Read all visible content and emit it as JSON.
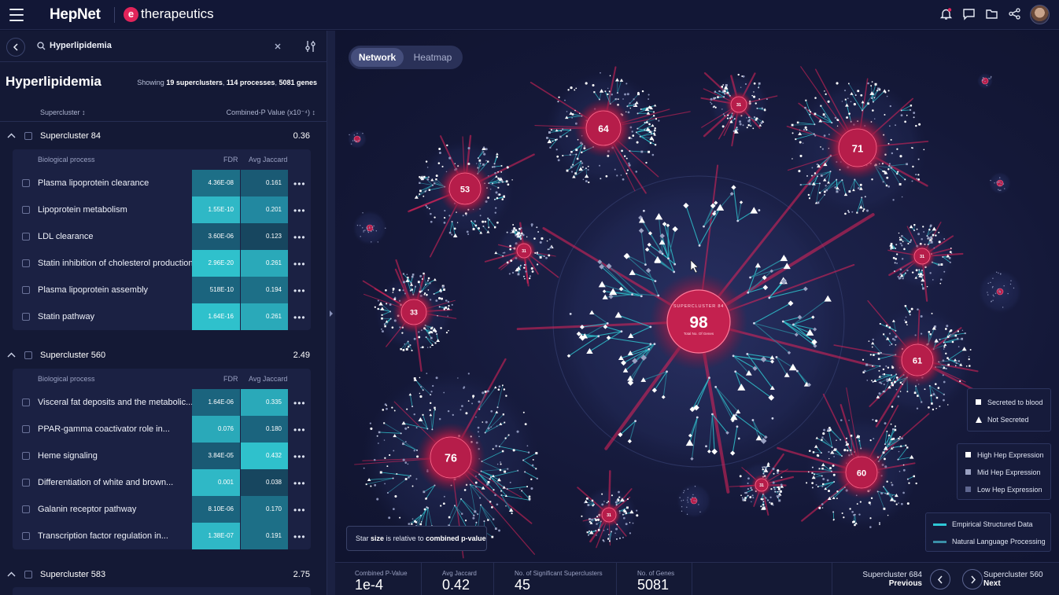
{
  "app": {
    "brand": "HepNet",
    "partner_logo_letter": "e",
    "partner_name": "therapeutics"
  },
  "topbar_icons": [
    "bell-icon",
    "chat-icon",
    "folder-icon",
    "share-icon"
  ],
  "search": {
    "value": "Hyperlipidemia"
  },
  "header": {
    "title": "Hyperlipidemia",
    "showing_prefix": "Showing",
    "superclusters": "19 superclusters",
    "processes": "114 processes",
    "genes": "5081 genes"
  },
  "columns": {
    "supercluster": "Supercluster",
    "combined": "Combined-P Value (x10⁻⁴)"
  },
  "groups": [
    {
      "name": "Supercluster 84",
      "value": "0.36",
      "head": {
        "process": "Biological process",
        "fdr": "FDR",
        "jaccard": "Avg Jaccard"
      },
      "rows": [
        {
          "name": "Plasma lipoprotein clearance",
          "fdr": "4.36E-08",
          "jac": "0.161"
        },
        {
          "name": "Lipoprotein metabolism",
          "fdr": "1.55E-10",
          "jac": "0.201"
        },
        {
          "name": "LDL clearance",
          "fdr": "3.60E-06",
          "jac": "0.123"
        },
        {
          "name": "Statin inhibition of cholesterol production",
          "fdr": "2.96E-20",
          "jac": "0.261"
        },
        {
          "name": "Plasma lipoprotein assembly",
          "fdr": "518E-10",
          "jac": "0.194"
        },
        {
          "name": "Statin pathway",
          "fdr": "1.64E-16",
          "jac": "0.261"
        }
      ]
    },
    {
      "name": "Supercluster 560",
      "value": "2.49",
      "head": {
        "process": "Biological process",
        "fdr": "FDR",
        "jaccard": "Avg Jaccard"
      },
      "rows": [
        {
          "name": "Visceral fat deposits and the metabolic...",
          "fdr": "1.64E-06",
          "jac": "0.335"
        },
        {
          "name": "PPAR-gamma coactivator role in...",
          "fdr": "0.076",
          "jac": "0.180"
        },
        {
          "name": "Heme signaling",
          "fdr": "3.84E-05",
          "jac": "0.432"
        },
        {
          "name": "Differentiation of white and brown...",
          "fdr": "0.001",
          "jac": "0.038"
        },
        {
          "name": "Galanin receptor pathway",
          "fdr": "8.10E-06",
          "jac": "0.170"
        },
        {
          "name": "Transcription factor regulation in...",
          "fdr": "1.38E-07",
          "jac": "0.191"
        }
      ]
    },
    {
      "name": "Supercluster 583",
      "value": "2.75"
    }
  ],
  "view_toggle": {
    "network": "Network",
    "heatmap": "Heatmap"
  },
  "network": {
    "center": {
      "caption": "SUPERCLUSTER 84",
      "number": "98",
      "subcaption": "Total No. Of Genes"
    },
    "clusters": [
      {
        "number": "64"
      },
      {
        "number": "71"
      },
      {
        "number": "53"
      },
      {
        "number": "33"
      },
      {
        "number": "76"
      },
      {
        "number": "61"
      },
      {
        "number": "60"
      },
      {
        "number": "31"
      },
      {
        "number": "31"
      },
      {
        "number": "31"
      },
      {
        "number": "31"
      },
      {
        "number": "31"
      }
    ]
  },
  "legend_secretion": [
    {
      "label": "Secreted to blood",
      "marker": "square"
    },
    {
      "label": "Not Secreted",
      "marker": "triangle"
    }
  ],
  "legend_expression": [
    {
      "label": "High Hep Expression",
      "color": "#ffffff"
    },
    {
      "label": "Mid Hep Expression",
      "color": "#9aa1c2"
    },
    {
      "label": "Low Hep Expression",
      "color": "#5f6790"
    }
  ],
  "legend_source": [
    {
      "label": "Empirical Structured Data",
      "color": "#2ec8d6"
    },
    {
      "label": "Natural Language Processing",
      "color": "#3a8fa8"
    }
  ],
  "note": {
    "prefix": "Star",
    "bold1": "size",
    "middle": "is relative to",
    "bold2": "combined p-value"
  },
  "stats": [
    {
      "label": "Combined P-Value",
      "value": "1e-4"
    },
    {
      "label": "Avg Jaccard",
      "value": "0.42"
    },
    {
      "label": "No. of Significant Superclusters",
      "value": "45"
    },
    {
      "label": "No. of Genes",
      "value": "5081"
    }
  ],
  "nav": {
    "prev_name": "Supercluster 684",
    "prev_label": "Previous",
    "next_name": "Supercluster 560",
    "next_label": "Next"
  },
  "colors": {
    "accent": "#e2245a",
    "teal_high": "#2fc1cc",
    "teal_low": "#1f6f85",
    "bg": "#0f1330"
  }
}
